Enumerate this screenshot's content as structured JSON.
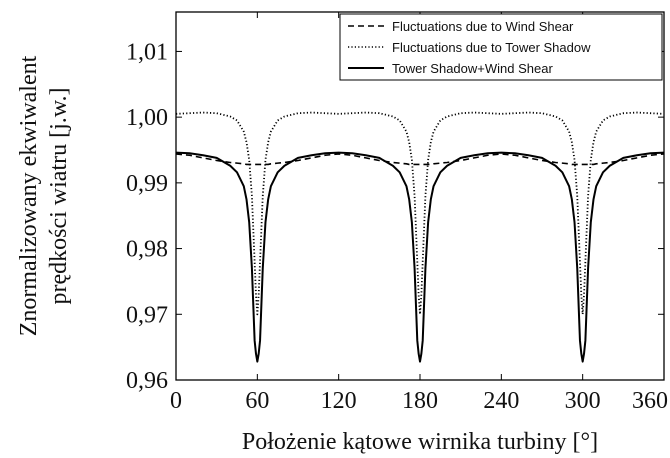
{
  "chart_data": {
    "type": "line",
    "title": "",
    "xlabel": "Położenie kątowe wirnika turbiny [°]",
    "ylabel_line1": "Znormalizowany ekwiwalent",
    "ylabel_line2": "prędkości wiatru [j.w.]",
    "xlim": [
      0,
      360
    ],
    "ylim": [
      0.96,
      1.016
    ],
    "xticks": [
      0,
      60,
      120,
      180,
      240,
      300,
      360
    ],
    "xtick_labels": [
      "0",
      "60",
      "120",
      "180",
      "240",
      "300",
      "360"
    ],
    "yticks": [
      0.96,
      0.97,
      0.98,
      0.99,
      1.0,
      1.01
    ],
    "ytick_labels": [
      "0,96",
      "0,97",
      "0,98",
      "0,99",
      "1,00",
      "1,01"
    ],
    "grid": false,
    "legend_position": "top-right",
    "x": [
      0,
      10,
      20,
      30,
      40,
      45,
      50,
      52,
      54,
      56,
      58,
      59,
      60,
      61,
      62,
      64,
      66,
      68,
      70,
      75,
      80,
      90,
      100,
      110,
      120,
      130,
      140,
      150,
      160,
      165,
      170,
      172,
      174,
      176,
      178,
      179,
      180,
      181,
      182,
      184,
      186,
      188,
      190,
      195,
      200,
      210,
      220,
      230,
      240,
      250,
      260,
      270,
      280,
      285,
      290,
      292,
      294,
      296,
      298,
      299,
      300,
      301,
      302,
      304,
      306,
      308,
      310,
      315,
      320,
      330,
      340,
      350,
      360
    ],
    "series": [
      {
        "name": "Fluctuations due to Wind Shear",
        "style": "dashed",
        "values": [
          0.9944,
          0.9942,
          0.9938,
          0.9934,
          0.9931,
          0.993,
          0.9929,
          0.9928,
          0.9928,
          0.9928,
          0.9928,
          0.9928,
          0.9928,
          0.9928,
          0.9928,
          0.9928,
          0.9928,
          0.9928,
          0.9929,
          0.993,
          0.9931,
          0.9934,
          0.9938,
          0.9942,
          0.9944,
          0.9942,
          0.9938,
          0.9934,
          0.9931,
          0.993,
          0.9929,
          0.9928,
          0.9928,
          0.9928,
          0.9928,
          0.9928,
          0.9928,
          0.9928,
          0.9928,
          0.9928,
          0.9928,
          0.9928,
          0.9929,
          0.993,
          0.9931,
          0.9934,
          0.9938,
          0.9942,
          0.9944,
          0.9942,
          0.9938,
          0.9934,
          0.9931,
          0.993,
          0.9929,
          0.9928,
          0.9928,
          0.9928,
          0.9928,
          0.9928,
          0.9928,
          0.9928,
          0.9928,
          0.9928,
          0.9928,
          0.9928,
          0.9929,
          0.993,
          0.9931,
          0.9934,
          0.9938,
          0.9942,
          0.9944
        ]
      },
      {
        "name": "Fluctuations due to Tower Shadow",
        "style": "dotted",
        "values": [
          1.0005,
          1.0006,
          1.0007,
          1.0006,
          1.0001,
          0.9995,
          0.9978,
          0.9962,
          0.9935,
          0.988,
          0.978,
          0.973,
          0.97,
          0.973,
          0.978,
          0.988,
          0.9935,
          0.9962,
          0.9978,
          0.9995,
          1.0001,
          1.0006,
          1.0007,
          1.0006,
          1.0005,
          1.0006,
          1.0007,
          1.0006,
          1.0001,
          0.9995,
          0.9978,
          0.9962,
          0.9935,
          0.988,
          0.978,
          0.973,
          0.97,
          0.973,
          0.978,
          0.988,
          0.9935,
          0.9962,
          0.9978,
          0.9995,
          1.0001,
          1.0006,
          1.0007,
          1.0006,
          1.0005,
          1.0006,
          1.0007,
          1.0006,
          1.0001,
          0.9995,
          0.9978,
          0.9962,
          0.9935,
          0.988,
          0.978,
          0.973,
          0.97,
          0.973,
          0.978,
          0.988,
          0.9935,
          0.9962,
          0.9978,
          0.9995,
          1.0001,
          1.0006,
          1.0007,
          1.0006,
          1.0005
        ]
      },
      {
        "name": "Tower Shadow+Wind Shear",
        "style": "solid",
        "values": [
          0.9946,
          0.9945,
          0.9942,
          0.9938,
          0.9926,
          0.9916,
          0.9895,
          0.9875,
          0.984,
          0.977,
          0.966,
          0.964,
          0.9628,
          0.964,
          0.966,
          0.977,
          0.984,
          0.9875,
          0.9895,
          0.9916,
          0.9926,
          0.9938,
          0.9942,
          0.9945,
          0.9946,
          0.9945,
          0.9942,
          0.9938,
          0.9926,
          0.9916,
          0.9895,
          0.9875,
          0.984,
          0.977,
          0.966,
          0.964,
          0.9628,
          0.964,
          0.966,
          0.977,
          0.984,
          0.9875,
          0.9895,
          0.9916,
          0.9926,
          0.9938,
          0.9942,
          0.9945,
          0.9946,
          0.9945,
          0.9942,
          0.9938,
          0.9926,
          0.9916,
          0.9895,
          0.9875,
          0.984,
          0.977,
          0.966,
          0.964,
          0.9628,
          0.964,
          0.966,
          0.977,
          0.984,
          0.9875,
          0.9895,
          0.9916,
          0.9926,
          0.9938,
          0.9942,
          0.9945,
          0.9946
        ]
      }
    ]
  }
}
